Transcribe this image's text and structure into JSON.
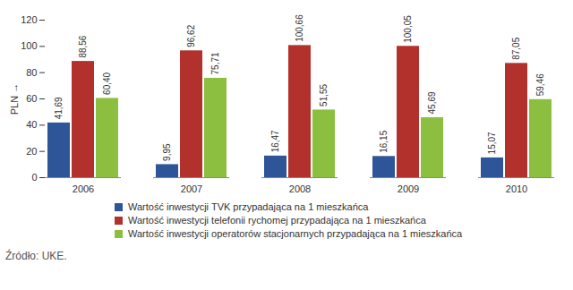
{
  "chart_data": {
    "type": "bar",
    "y_label": "PLN",
    "categories": [
      "2006",
      "2007",
      "2008",
      "2009",
      "2010"
    ],
    "series": [
      {
        "name": "Wartość inwestycji TVK przypadająca na 1 mieszkańca",
        "color": "#2E5597",
        "values": [
          41.69,
          9.95,
          16.47,
          16.15,
          15.07
        ],
        "value_labels": [
          "41,69",
          "9,95",
          "16,47",
          "16,15",
          "15,07"
        ]
      },
      {
        "name": "Wartość inwestycji telefonii rychomej przypadająca na 1 mieszkańca",
        "color": "#B3312C",
        "values": [
          88.56,
          96.62,
          100.66,
          100.05,
          87.05
        ],
        "value_labels": [
          "88,56",
          "96,62",
          "100,66",
          "100,05",
          "87,05"
        ]
      },
      {
        "name": "Wartość inwestycji operatorów stacjonarnych przypadająca na 1 mieszkańca",
        "color": "#8CBF3F",
        "values": [
          60.4,
          75.71,
          51.55,
          45.69,
          59.46
        ],
        "value_labels": [
          "60,40",
          "75,71",
          "51,55",
          "45,69",
          "59,46"
        ]
      }
    ],
    "ylim": [
      0,
      120
    ],
    "yticks": [
      0,
      20,
      40,
      60,
      80,
      100,
      120
    ],
    "grid": false,
    "data_labels": true,
    "legend": "bottom",
    "source": "Źródło: UKE."
  }
}
